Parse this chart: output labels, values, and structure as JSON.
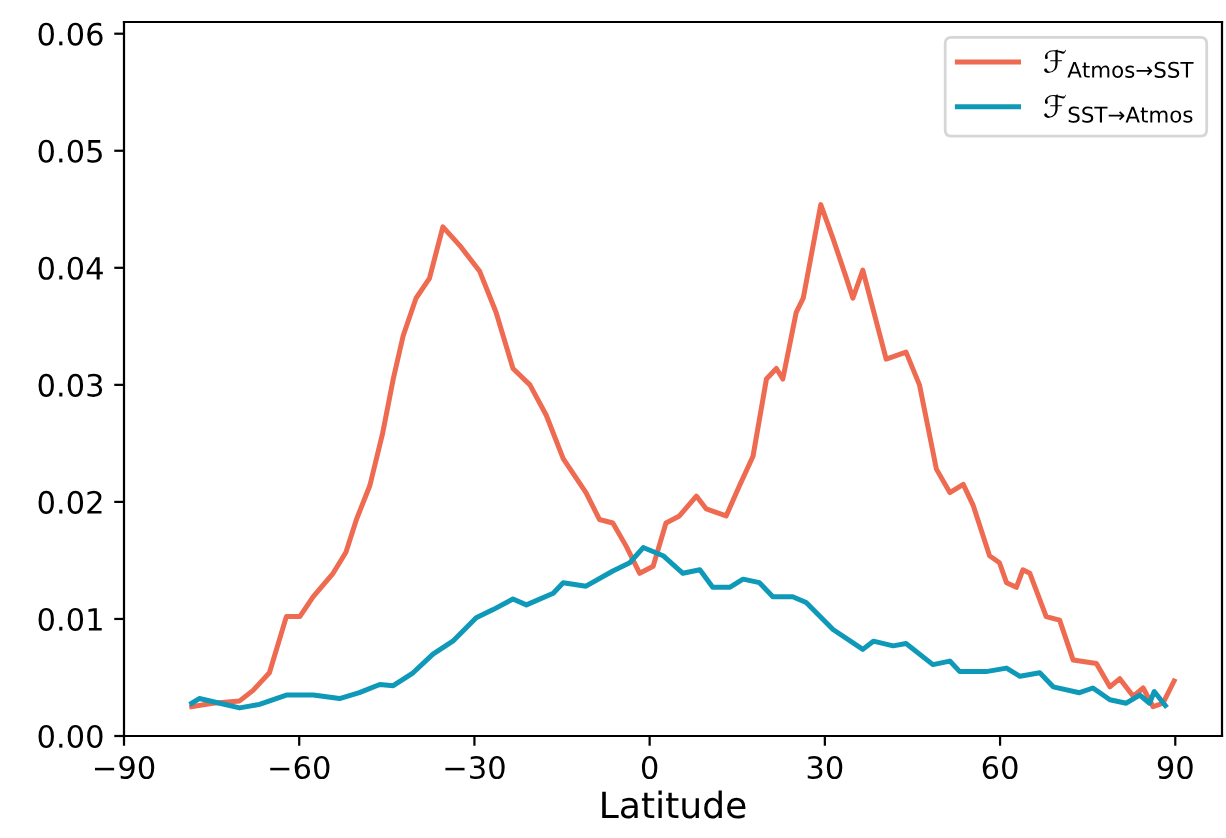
{
  "chart_data": {
    "type": "line",
    "xlabel": "Latitude",
    "xlim": [
      -90,
      98
    ],
    "xticks": [
      {
        "value": -90,
        "label": "−90"
      },
      {
        "value": -60,
        "label": "−60"
      },
      {
        "value": -30,
        "label": "−30"
      },
      0,
      30,
      60,
      90
    ],
    "ylim": [
      0,
      0.061
    ],
    "yticks": [
      {
        "value": 0,
        "label": "0.00"
      },
      {
        "value": 0.01,
        "label": "0.01"
      },
      {
        "value": 0.02,
        "label": "0.02"
      },
      {
        "value": 0.03,
        "label": "0.03"
      },
      {
        "value": 0.04,
        "label": "0.04"
      },
      {
        "value": 0.05,
        "label": "0.05"
      },
      {
        "value": 0.06,
        "label": "0.06"
      }
    ],
    "grid": false,
    "legend": "top right",
    "marker": "none",
    "line_style": "solid",
    "series": [
      {
        "name": "ℱ$_{Atmos→SST}$",
        "color": "#ee6a50",
        "x": [
          -78.4,
          -74.8,
          -70.2,
          -67.9,
          -65.1,
          -62.2,
          -59.9,
          -57.6,
          -54.2,
          -52.0,
          -50.2,
          -47.9,
          -45.7,
          -43.9,
          -42.2,
          -40.0,
          -37.7,
          -35.4,
          -32.5,
          -29.1,
          -26.3,
          -23.4,
          -20.5,
          -17.7,
          -14.8,
          -10.9,
          -8.6,
          -6.3,
          -4.0,
          -1.7,
          0.6,
          2.8,
          5.1,
          8.0,
          9.7,
          13.1,
          15.4,
          17.7,
          20.0,
          21.7,
          22.8,
          25.1,
          26.3,
          29.3,
          31.4,
          33.7,
          34.8,
          36.5,
          40.5,
          43.9,
          46.2,
          49.1,
          51.4,
          53.7,
          55.4,
          58.2,
          59.9,
          61.1,
          62.8,
          63.9,
          65.1,
          67.9,
          70.2,
          72.5,
          76.5,
          78.8,
          80.5,
          82.8,
          84.5,
          86.2,
          87.9,
          89.8
        ],
        "values": [
          0.0025,
          0.0028,
          0.003,
          0.0039,
          0.0054,
          0.0102,
          0.0102,
          0.0119,
          0.0139,
          0.0157,
          0.0185,
          0.0214,
          0.0259,
          0.0305,
          0.0342,
          0.0374,
          0.0391,
          0.0435,
          0.0419,
          0.0397,
          0.0362,
          0.0314,
          0.03,
          0.0274,
          0.0237,
          0.0208,
          0.0185,
          0.0182,
          0.0162,
          0.0139,
          0.0145,
          0.0182,
          0.0188,
          0.0205,
          0.0194,
          0.0188,
          0.0214,
          0.0239,
          0.0305,
          0.0314,
          0.0305,
          0.0362,
          0.0374,
          0.0454,
          0.0425,
          0.0391,
          0.0374,
          0.0398,
          0.0322,
          0.0328,
          0.03,
          0.0228,
          0.0208,
          0.0215,
          0.0197,
          0.0154,
          0.0148,
          0.0131,
          0.0127,
          0.0142,
          0.0139,
          0.0102,
          0.0099,
          0.0065,
          0.0062,
          0.0042,
          0.0049,
          0.0034,
          0.0041,
          0.0025,
          0.0028,
          0.0047
        ]
      },
      {
        "name": "ℱ$_{SST→Atmos}$",
        "color": "#0f99b8",
        "x": [
          -78.4,
          -77.1,
          -73.6,
          -70.2,
          -66.8,
          -62.2,
          -57.6,
          -53.1,
          -49.7,
          -46.2,
          -43.9,
          -40.5,
          -37.1,
          -33.7,
          -29.7,
          -26.8,
          -23.4,
          -21.1,
          -16.5,
          -14.8,
          -10.9,
          -6.3,
          -3.4,
          -1.1,
          2.3,
          5.7,
          8.6,
          10.8,
          13.7,
          16.0,
          18.8,
          21.1,
          24.5,
          26.8,
          31.4,
          36.5,
          38.3,
          41.7,
          43.9,
          48.5,
          51.4,
          53.1,
          57.6,
          61.1,
          63.4,
          66.8,
          69.1,
          73.6,
          75.9,
          78.8,
          81.6,
          83.9,
          85.6,
          86.4,
          88.3
        ],
        "values": [
          0.0028,
          0.0032,
          0.0028,
          0.0024,
          0.0027,
          0.0035,
          0.0035,
          0.0032,
          0.0037,
          0.0044,
          0.0043,
          0.0054,
          0.007,
          0.0081,
          0.0101,
          0.0108,
          0.0117,
          0.0112,
          0.0122,
          0.0131,
          0.0128,
          0.0141,
          0.0148,
          0.0161,
          0.0154,
          0.0139,
          0.0142,
          0.0127,
          0.0127,
          0.0134,
          0.0131,
          0.0119,
          0.0119,
          0.0114,
          0.0091,
          0.0074,
          0.0081,
          0.0077,
          0.0079,
          0.0061,
          0.0064,
          0.0055,
          0.0055,
          0.0058,
          0.0051,
          0.0054,
          0.0042,
          0.0037,
          0.0041,
          0.0031,
          0.0028,
          0.0035,
          0.0028,
          0.0038,
          0.0026
        ]
      }
    ]
  }
}
